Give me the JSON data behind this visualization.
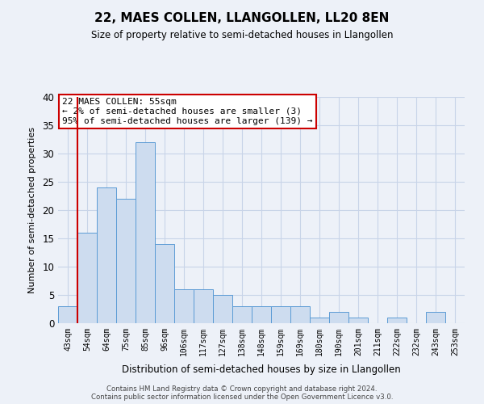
{
  "title": "22, MAES COLLEN, LLANGOLLEN, LL20 8EN",
  "subtitle": "Size of property relative to semi-detached houses in Llangollen",
  "xlabel": "Distribution of semi-detached houses by size in Llangollen",
  "ylabel": "Number of semi-detached properties",
  "bin_labels": [
    "43sqm",
    "54sqm",
    "64sqm",
    "75sqm",
    "85sqm",
    "96sqm",
    "106sqm",
    "117sqm",
    "127sqm",
    "138sqm",
    "148sqm",
    "159sqm",
    "169sqm",
    "180sqm",
    "190sqm",
    "201sqm",
    "211sqm",
    "222sqm",
    "232sqm",
    "243sqm",
    "253sqm"
  ],
  "bar_heights": [
    3,
    16,
    24,
    22,
    32,
    14,
    6,
    6,
    5,
    3,
    3,
    3,
    3,
    1,
    2,
    1,
    0,
    1,
    0,
    2,
    0
  ],
  "bar_color": "#cddcef",
  "bar_edgecolor": "#5b9bd5",
  "grid_color": "#c8d4e8",
  "background_color": "#edf1f8",
  "redline_color": "#cc0000",
  "annotation_title": "22 MAES COLLEN: 55sqm",
  "annotation_line1": "← 2% of semi-detached houses are smaller (3)",
  "annotation_line2": "95% of semi-detached houses are larger (139) →",
  "annotation_box_facecolor": "#ffffff",
  "annotation_box_edgecolor": "#cc0000",
  "ylim": [
    0,
    40
  ],
  "yticks": [
    0,
    5,
    10,
    15,
    20,
    25,
    30,
    35,
    40
  ],
  "footer1": "Contains HM Land Registry data © Crown copyright and database right 2024.",
  "footer2": "Contains public sector information licensed under the Open Government Licence v3.0."
}
